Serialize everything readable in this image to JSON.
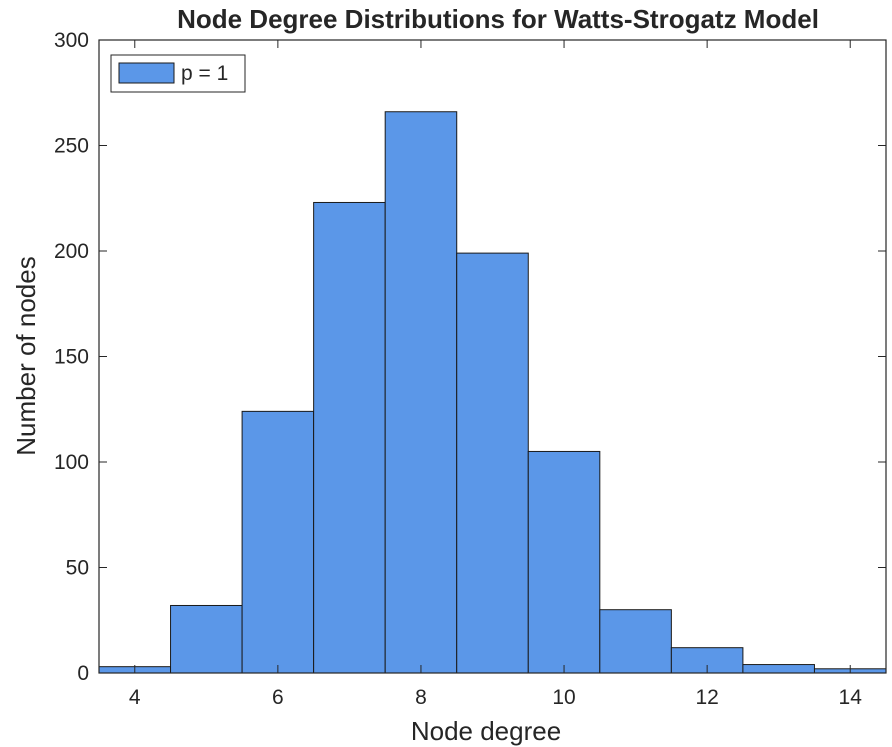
{
  "chart_data": {
    "type": "bar",
    "title": "Node Degree Distributions for Watts-Strogatz Model",
    "xlabel": "Node degree",
    "ylabel": "Number of nodes",
    "xlim": [
      3.5,
      14.5
    ],
    "ylim": [
      0,
      300
    ],
    "xticks": [
      "4",
      "6",
      "8",
      "10",
      "12",
      "14"
    ],
    "yticks": [
      "0",
      "50",
      "100",
      "150",
      "200",
      "250",
      "300"
    ],
    "bin_width": 1,
    "x": [
      4,
      5,
      6,
      7,
      8,
      9,
      10,
      11,
      12,
      13,
      14
    ],
    "values": [
      3,
      32,
      124,
      223,
      266,
      199,
      105,
      30,
      12,
      4,
      2
    ],
    "series": [
      {
        "name": "p = 1",
        "values": [
          3,
          32,
          124,
          223,
          266,
          199,
          105,
          30,
          12,
          4,
          2
        ]
      }
    ],
    "legend_position": "top-left",
    "grid": false,
    "colors": {
      "bar_fill": "#5b97e8",
      "bar_edge": "#1a1a1a",
      "axis": "#262626"
    }
  }
}
